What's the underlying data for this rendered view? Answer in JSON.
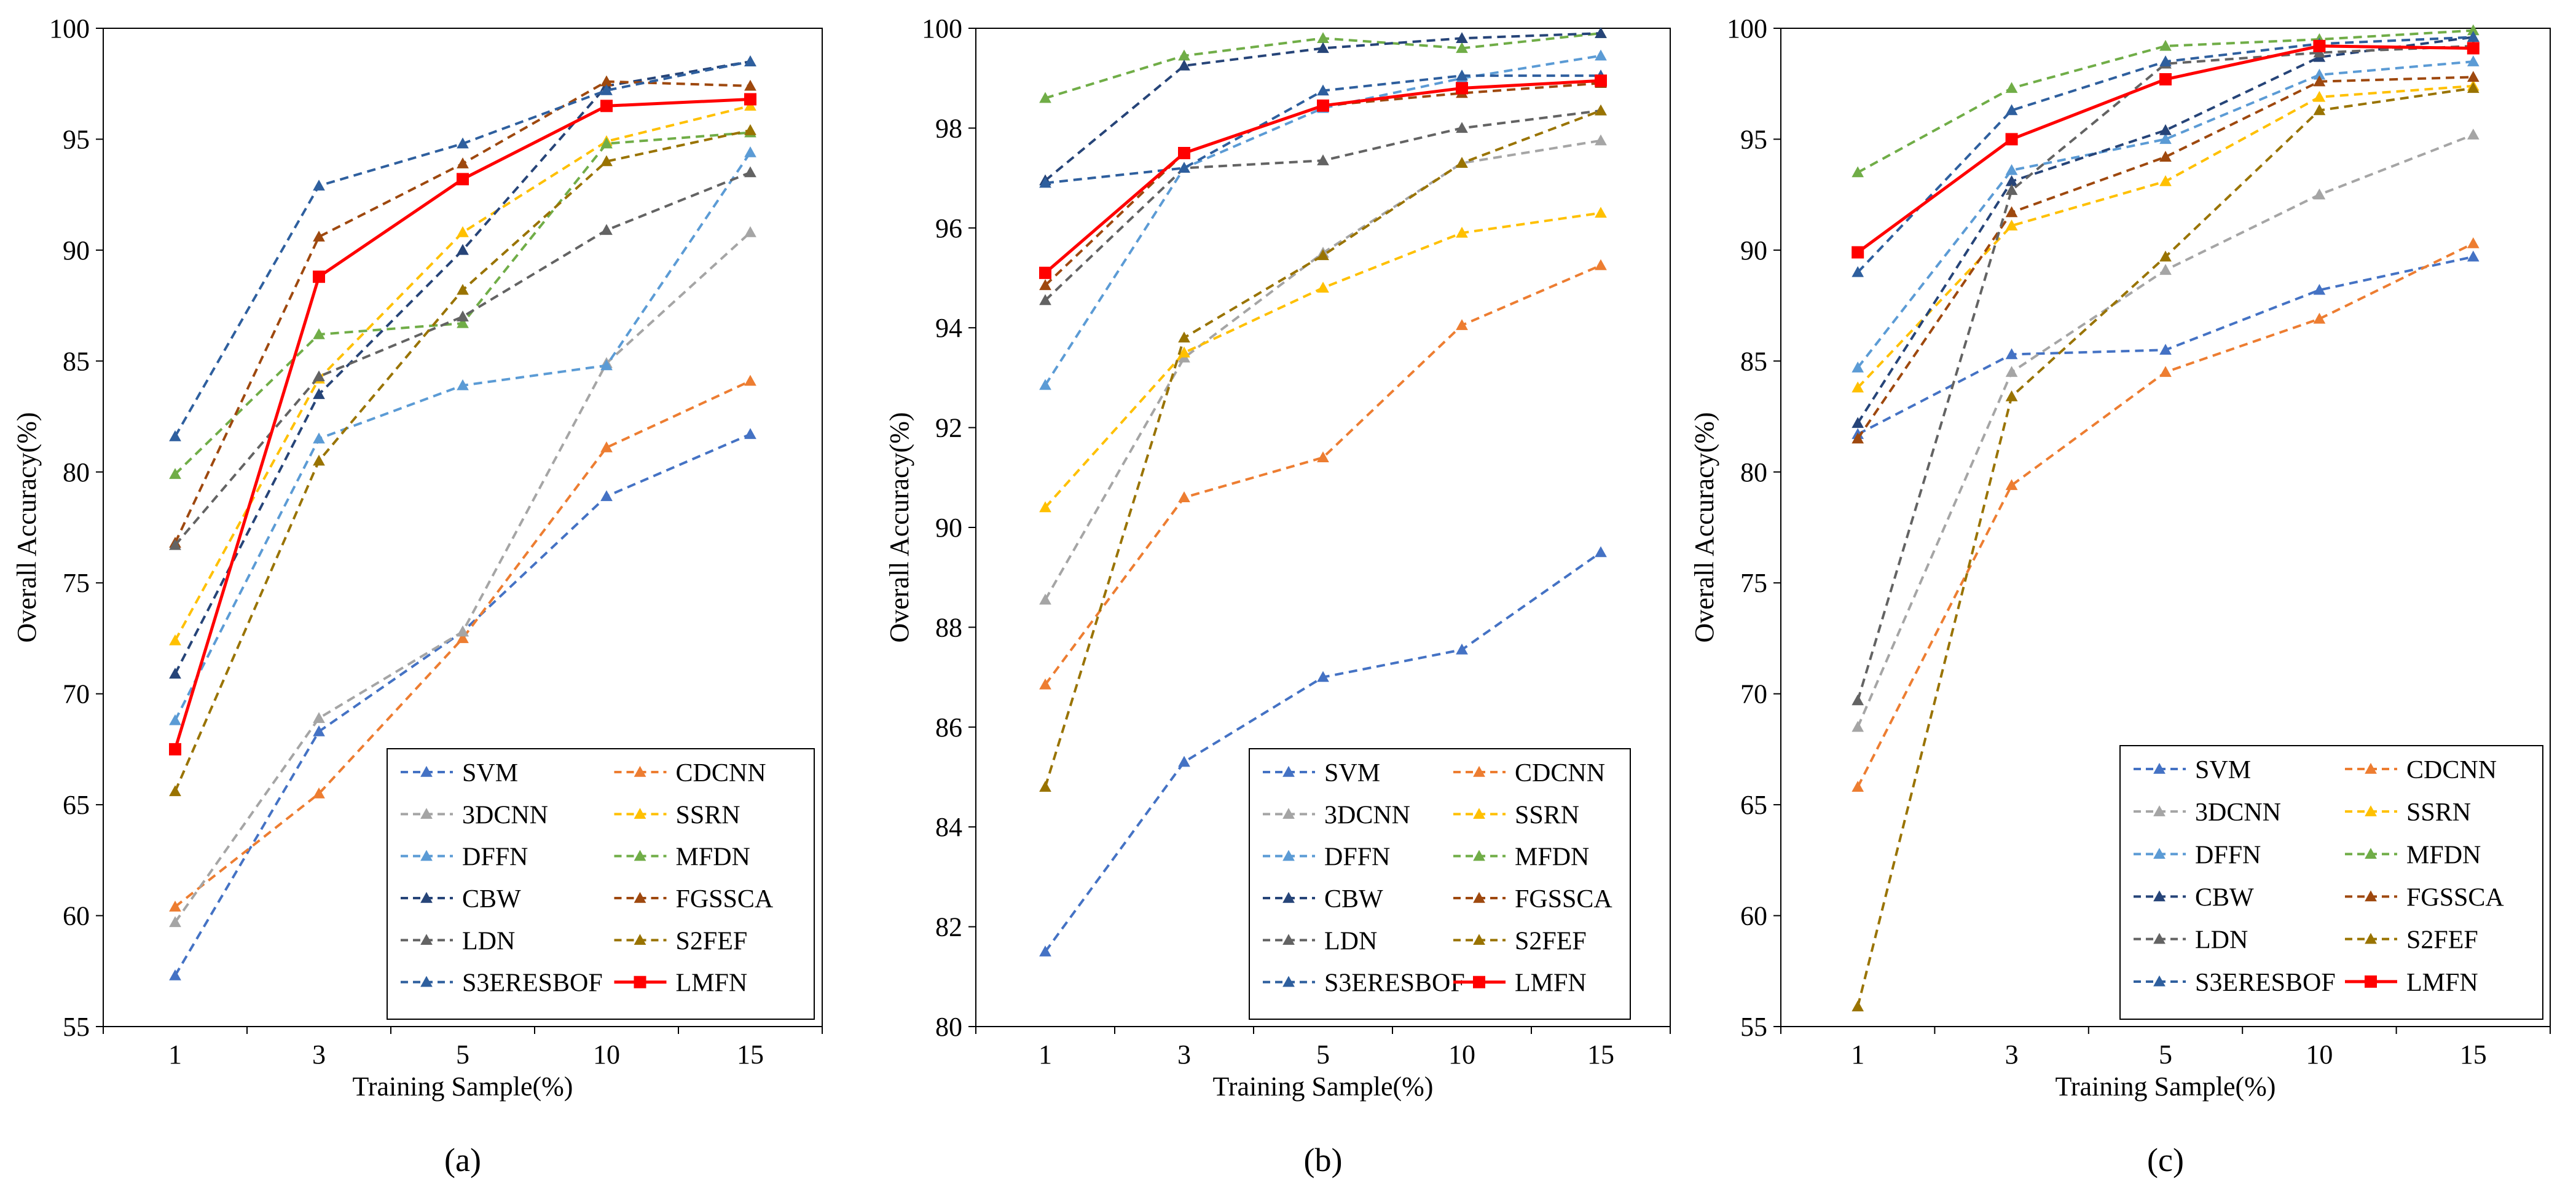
{
  "chart_data": [
    {
      "type": "line",
      "panel_label": "(a)",
      "xlabel": "Training Sample(%)",
      "ylabel": "Overall Accuracy(%)",
      "categories": [
        "1",
        "3",
        "5",
        "10",
        "15"
      ],
      "ylim": [
        55,
        100
      ],
      "yticks": [
        55,
        60,
        65,
        70,
        75,
        80,
        85,
        90,
        95,
        100
      ],
      "series": [
        {
          "name": "SVM",
          "values": [
            57.3,
            68.3,
            72.8,
            78.9,
            81.7
          ]
        },
        {
          "name": "CDCNN",
          "values": [
            60.4,
            65.5,
            72.5,
            81.1,
            84.1
          ]
        },
        {
          "name": "3DCNN",
          "values": [
            59.7,
            68.9,
            72.8,
            84.9,
            90.8
          ]
        },
        {
          "name": "SSRN",
          "values": [
            72.4,
            84.2,
            90.8,
            94.9,
            96.5
          ]
        },
        {
          "name": "DFFN",
          "values": [
            68.8,
            81.5,
            83.9,
            84.8,
            94.4
          ]
        },
        {
          "name": "MFDN",
          "values": [
            79.9,
            86.2,
            86.7,
            94.8,
            95.3
          ]
        },
        {
          "name": "CBW",
          "values": [
            70.9,
            83.5,
            90.0,
            97.4,
            98.5
          ]
        },
        {
          "name": "FGSSCA",
          "values": [
            76.8,
            90.6,
            93.9,
            97.6,
            97.4
          ]
        },
        {
          "name": "LDN",
          "values": [
            76.7,
            84.3,
            87.0,
            90.9,
            93.5
          ]
        },
        {
          "name": "S2FEF",
          "values": [
            65.6,
            80.5,
            88.2,
            94.0,
            95.4
          ]
        },
        {
          "name": "S3ERESBOF",
          "values": [
            81.6,
            92.9,
            94.8,
            97.2,
            98.5
          ]
        },
        {
          "name": "LMFN",
          "values": [
            67.5,
            88.8,
            93.2,
            96.5,
            96.8
          ]
        }
      ]
    },
    {
      "type": "line",
      "panel_label": "(b)",
      "xlabel": "Training Sample(%)",
      "ylabel": "Overall Accuracy(%)",
      "categories": [
        "1",
        "3",
        "5",
        "10",
        "15"
      ],
      "ylim": [
        80,
        100
      ],
      "yticks": [
        80,
        82,
        84,
        86,
        88,
        90,
        92,
        94,
        96,
        98,
        100
      ],
      "series": [
        {
          "name": "SVM",
          "values": [
            81.5,
            85.3,
            87.0,
            87.55,
            89.5
          ]
        },
        {
          "name": "CDCNN",
          "values": [
            86.85,
            90.6,
            91.4,
            94.05,
            95.25
          ]
        },
        {
          "name": "3DCNN",
          "values": [
            88.55,
            93.4,
            95.5,
            97.3,
            97.75
          ]
        },
        {
          "name": "SSRN",
          "values": [
            90.4,
            93.5,
            94.8,
            95.9,
            96.3
          ]
        },
        {
          "name": "DFFN",
          "values": [
            92.85,
            97.2,
            98.4,
            99.0,
            99.45
          ]
        },
        {
          "name": "MFDN",
          "values": [
            98.6,
            99.45,
            99.8,
            99.6,
            99.9
          ]
        },
        {
          "name": "CBW",
          "values": [
            96.95,
            99.25,
            99.6,
            99.8,
            99.9
          ]
        },
        {
          "name": "FGSSCA",
          "values": [
            94.85,
            97.5,
            98.45,
            98.7,
            98.9
          ]
        },
        {
          "name": "LDN",
          "values": [
            94.55,
            97.2,
            97.35,
            98.0,
            98.35
          ]
        },
        {
          "name": "S2FEF",
          "values": [
            84.8,
            93.8,
            95.45,
            97.3,
            98.35
          ]
        },
        {
          "name": "S3ERESBOF",
          "values": [
            96.9,
            97.2,
            98.75,
            99.05,
            99.05
          ]
        },
        {
          "name": "LMFN",
          "values": [
            95.1,
            97.5,
            98.45,
            98.8,
            98.95
          ]
        }
      ]
    },
    {
      "type": "line",
      "panel_label": "(c)",
      "xlabel": "Training Sample(%)",
      "ylabel": "Overall Accuracy(%)",
      "categories": [
        "1",
        "3",
        "5",
        "10",
        "15"
      ],
      "ylim": [
        55,
        100
      ],
      "yticks": [
        55,
        60,
        65,
        70,
        75,
        80,
        85,
        90,
        95,
        100
      ],
      "series": [
        {
          "name": "SVM",
          "values": [
            81.7,
            85.3,
            85.5,
            88.2,
            89.7
          ]
        },
        {
          "name": "CDCNN",
          "values": [
            65.8,
            79.4,
            84.5,
            86.9,
            90.3
          ]
        },
        {
          "name": "3DCNN",
          "values": [
            68.5,
            84.5,
            89.1,
            92.5,
            95.2
          ]
        },
        {
          "name": "SSRN",
          "values": [
            83.8,
            91.1,
            93.1,
            96.9,
            97.4
          ]
        },
        {
          "name": "DFFN",
          "values": [
            84.7,
            93.6,
            95.0,
            97.9,
            98.5
          ]
        },
        {
          "name": "MFDN",
          "values": [
            93.5,
            97.3,
            99.2,
            99.5,
            99.9
          ]
        },
        {
          "name": "CBW",
          "values": [
            82.2,
            93.1,
            95.4,
            98.7,
            99.6
          ]
        },
        {
          "name": "FGSSCA",
          "values": [
            81.5,
            91.7,
            94.2,
            97.6,
            97.8
          ]
        },
        {
          "name": "LDN",
          "values": [
            69.7,
            92.7,
            98.4,
            98.9,
            99.2
          ]
        },
        {
          "name": "S2FEF",
          "values": [
            55.9,
            83.4,
            89.7,
            96.3,
            97.3
          ]
        },
        {
          "name": "S3ERESBOF",
          "values": [
            89.0,
            96.3,
            98.5,
            99.3,
            99.6
          ]
        },
        {
          "name": "LMFN",
          "values": [
            89.9,
            95.0,
            97.7,
            99.2,
            99.1
          ]
        }
      ]
    }
  ],
  "series_colors": {
    "SVM": "#4472c4",
    "CDCNN": "#ed7d31",
    "3DCNN": "#a5a5a5",
    "SSRN": "#ffc000",
    "DFFN": "#5b9bd5",
    "MFDN": "#70ad47",
    "CBW": "#264478",
    "FGSSCA": "#9e480e",
    "LDN": "#636363",
    "S2FEF": "#997300",
    "S3ERESBOF": "#2e5f9e",
    "LMFN": "#ff0000"
  }
}
